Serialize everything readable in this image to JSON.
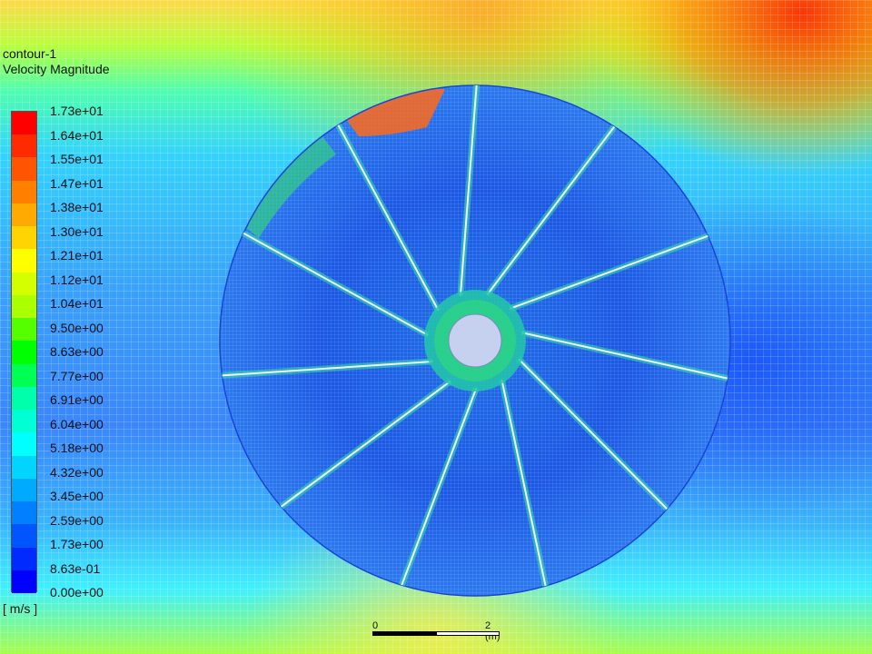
{
  "contour": {
    "name": "contour-1",
    "quantity": "Velocity Magnitude",
    "units": "[ m/s ]"
  },
  "colorbar": {
    "labels": [
      "1.73e+01",
      "1.64e+01",
      "1.55e+01",
      "1.47e+01",
      "1.38e+01",
      "1.30e+01",
      "1.21e+01",
      "1.12e+01",
      "1.04e+01",
      "9.50e+00",
      "8.63e+00",
      "7.77e+00",
      "6.91e+00",
      "6.04e+00",
      "5.18e+00",
      "4.32e+00",
      "3.45e+00",
      "2.59e+00",
      "1.73e+00",
      "8.63e-01",
      "0.00e+00"
    ],
    "colors": [
      "#ff0000",
      "#ff2a00",
      "#ff5500",
      "#ff7f00",
      "#ffaa00",
      "#ffd400",
      "#ffff00",
      "#d4ff00",
      "#aaff00",
      "#55ff00",
      "#00ff00",
      "#00ff55",
      "#00ffaa",
      "#00ffd4",
      "#00ffff",
      "#00d4ff",
      "#00aaff",
      "#007fff",
      "#0055ff",
      "#002aff",
      "#0000ff"
    ]
  },
  "scale_bar": {
    "start_label": "0",
    "end_label": "2 (m)"
  },
  "icons": {
    "hub": "hub-disc",
    "impeller": "impeller-blades"
  }
}
